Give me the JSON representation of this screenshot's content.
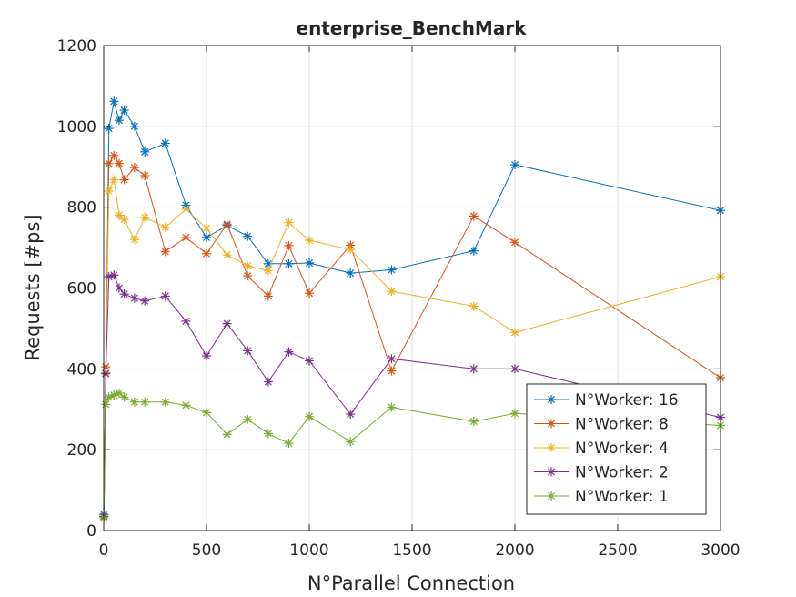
{
  "chart_data": {
    "type": "line",
    "title": "enterprise_BenchMark",
    "xlabel": "N°Parallel Connection",
    "ylabel": "Requests [#ps]",
    "xlim": [
      0,
      3000
    ],
    "ylim": [
      0,
      1200
    ],
    "xticks": [
      0,
      500,
      1000,
      1500,
      2000,
      2500,
      3000
    ],
    "yticks": [
      0,
      200,
      400,
      600,
      800,
      1000,
      1200
    ],
    "grid": true,
    "legend_position": "bottom-right",
    "marker": "asterisk",
    "series": [
      {
        "name": "N°Worker: 16",
        "color": "#0072BD",
        "x": [
          1,
          10,
          25,
          50,
          75,
          100,
          150,
          200,
          300,
          400,
          500,
          600,
          700,
          800,
          900,
          1000,
          1200,
          1400,
          1800,
          2000,
          3000
        ],
        "y": [
          40,
          390,
          995,
          1062,
          1015,
          1040,
          1000,
          937,
          958,
          805,
          725,
          755,
          728,
          660,
          660,
          662,
          637,
          645,
          692,
          905,
          792
        ]
      },
      {
        "name": "N°Worker: 8",
        "color": "#D95319",
        "x": [
          1,
          10,
          25,
          50,
          75,
          100,
          150,
          200,
          300,
          400,
          500,
          600,
          700,
          800,
          900,
          1000,
          1200,
          1400,
          1800,
          2000,
          3000
        ],
        "y": [
          35,
          405,
          908,
          928,
          908,
          868,
          898,
          878,
          690,
          725,
          685,
          758,
          630,
          580,
          705,
          587,
          706,
          395,
          778,
          713,
          378
        ]
      },
      {
        "name": "N°Worker: 4",
        "color": "#EDB120",
        "x": [
          1,
          10,
          25,
          50,
          75,
          100,
          150,
          200,
          300,
          400,
          500,
          600,
          700,
          800,
          900,
          1000,
          1200,
          1400,
          1800,
          2000,
          3000
        ],
        "y": [
          35,
          390,
          840,
          868,
          780,
          770,
          720,
          775,
          750,
          795,
          748,
          682,
          655,
          643,
          762,
          718,
          695,
          592,
          555,
          490,
          628
        ]
      },
      {
        "name": "N°Worker: 2",
        "color": "#7E2F8E",
        "x": [
          1,
          10,
          25,
          50,
          75,
          100,
          150,
          200,
          300,
          400,
          500,
          600,
          700,
          800,
          900,
          1000,
          1200,
          1400,
          1800,
          2000,
          3000
        ],
        "y": [
          35,
          388,
          628,
          632,
          600,
          585,
          575,
          568,
          580,
          518,
          432,
          512,
          445,
          368,
          442,
          420,
          288,
          425,
          400,
          400,
          280
        ]
      },
      {
        "name": "N°Worker: 1",
        "color": "#77AC30",
        "x": [
          1,
          10,
          25,
          50,
          75,
          100,
          150,
          200,
          300,
          400,
          500,
          600,
          700,
          800,
          900,
          1000,
          1200,
          1400,
          1800,
          2000,
          3000
        ],
        "y": [
          32,
          312,
          330,
          335,
          340,
          330,
          318,
          318,
          318,
          310,
          292,
          238,
          275,
          240,
          216,
          282,
          220,
          305,
          270,
          290,
          260
        ]
      }
    ]
  }
}
